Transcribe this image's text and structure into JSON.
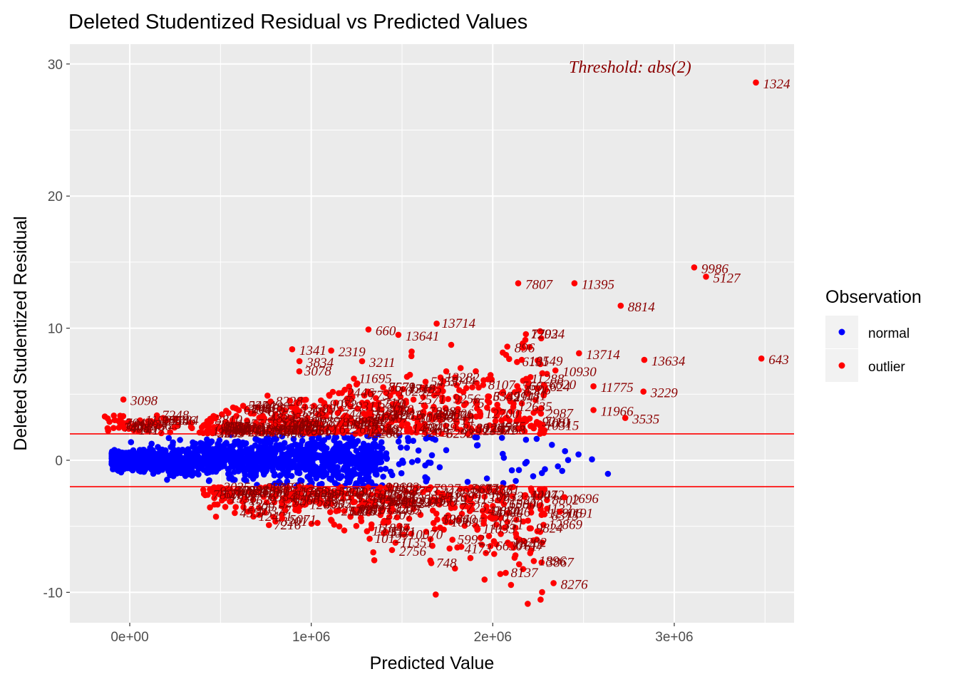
{
  "chart_data": {
    "type": "scatter",
    "title": "Deleted Studentized Residual vs Predicted Values",
    "xlabel": "Predicted Value",
    "ylabel": "Deleted Studentized Residual",
    "xlim": [
      -330000,
      3660000
    ],
    "ylim": [
      -12.3,
      31.5
    ],
    "x_ticks": [
      0,
      1000000,
      2000000,
      3000000
    ],
    "x_tick_labels": [
      "0e+00",
      "1e+06",
      "2e+06",
      "3e+06"
    ],
    "y_ticks": [
      -10,
      0,
      10,
      20,
      30
    ],
    "y_tick_labels": [
      "-10",
      "0",
      "10",
      "20",
      "30"
    ],
    "grid": true,
    "threshold": 2,
    "annotation": "Threshold: abs(2)",
    "legend": {
      "title": "Observation",
      "position": "right",
      "entries": [
        {
          "label": "normal",
          "color": "#0000ff"
        },
        {
          "label": "outlier",
          "color": "#ff0000"
        }
      ]
    },
    "colors": {
      "normal": "#0000ff",
      "outlier": "#ff0000",
      "label": "#8b0000",
      "threshold_line": "#ff0000",
      "panel": "#ebebeb",
      "grid": "#ffffff"
    },
    "labeled_outliers": [
      {
        "id": "1324",
        "x": 3450000,
        "y": 28.6
      },
      {
        "id": "9986",
        "x": 3110000,
        "y": 14.6
      },
      {
        "id": "5127",
        "x": 3175000,
        "y": 13.9
      },
      {
        "id": "7807",
        "x": 2140000,
        "y": 13.4
      },
      {
        "id": "11395",
        "x": 2450000,
        "y": 13.4
      },
      {
        "id": "8814",
        "x": 2705000,
        "y": 11.7
      },
      {
        "id": "660",
        "x": 1315000,
        "y": 9.9
      },
      {
        "id": "13641",
        "x": 1480000,
        "y": 9.5
      },
      {
        "id": "896",
        "x": 2080000,
        "y": 8.6
      },
      {
        "id": "13714",
        "x": 2475000,
        "y": 8.1
      },
      {
        "id": "13634",
        "x": 2835000,
        "y": 7.6
      },
      {
        "id": "643",
        "x": 3480000,
        "y": 7.7
      },
      {
        "id": "10549",
        "x": 2160000,
        "y": 7.6
      },
      {
        "id": "1341",
        "x": 895000,
        "y": 8.4
      },
      {
        "id": "2319",
        "x": 1110000,
        "y": 8.3
      },
      {
        "id": "3834",
        "x": 935000,
        "y": 7.5
      },
      {
        "id": "3211",
        "x": 1280000,
        "y": 7.5
      },
      {
        "id": "10930",
        "x": 2345000,
        "y": 6.8
      },
      {
        "id": "11775",
        "x": 2555000,
        "y": 5.6
      },
      {
        "id": "3229",
        "x": 2830000,
        "y": 5.2
      },
      {
        "id": "3098",
        "x": -35000,
        "y": 4.6
      },
      {
        "id": "11966",
        "x": 2555000,
        "y": 3.8
      },
      {
        "id": "3535",
        "x": 2730000,
        "y": 3.2
      },
      {
        "id": "1696",
        "x": 2395000,
        "y": -2.8
      },
      {
        "id": "1191",
        "x": 2370000,
        "y": -3.9
      },
      {
        "id": "8315",
        "x": 2285000,
        "y": -4.1
      },
      {
        "id": "4173",
        "x": 1805000,
        "y": -6.6
      },
      {
        "id": "7617",
        "x": 2095000,
        "y": -6.4
      },
      {
        "id": "2756",
        "x": 1445000,
        "y": -6.8
      },
      {
        "id": "8276",
        "x": 2335000,
        "y": -9.3
      },
      {
        "id": "5071",
        "x": 840000,
        "y": -4.4
      },
      {
        "id": "11351",
        "x": 1950000,
        "y": -4.8
      }
    ]
  }
}
